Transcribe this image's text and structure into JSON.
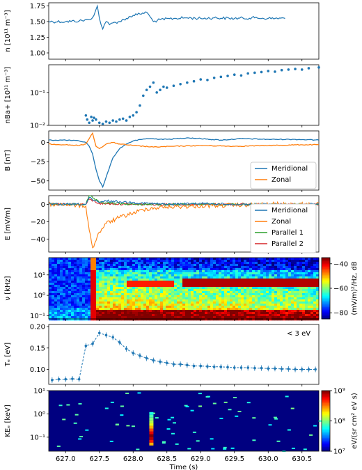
{
  "colors": {
    "blue": "#1f77b4",
    "orange": "#ff7f0e",
    "green": "#2ca02c",
    "red": "#d62728"
  },
  "chart_data": [
    {
      "type": "line",
      "ylabel": "n [10¹¹ m⁻³]",
      "ylim": [
        0.9,
        1.8
      ],
      "yticks": [
        1.0,
        1.25,
        1.5,
        1.75
      ],
      "ytick_labels": [
        "1.00",
        "1.25",
        "1.50",
        "1.75"
      ],
      "series": [
        {
          "name": "",
          "color": "#1f77b4",
          "x": [
            626.75,
            627.0,
            627.2,
            627.35,
            627.42,
            627.47,
            627.5,
            627.55,
            627.6,
            627.65,
            627.7,
            627.8,
            627.9,
            628.0,
            628.1,
            628.2,
            628.25,
            628.3,
            628.4,
            628.6,
            628.8,
            629.0,
            629.2,
            629.5,
            629.8,
            630.0,
            630.25
          ],
          "y": [
            1.5,
            1.5,
            1.51,
            1.53,
            1.6,
            1.75,
            1.55,
            1.38,
            1.5,
            1.45,
            1.48,
            1.5,
            1.55,
            1.6,
            1.62,
            1.65,
            1.58,
            1.5,
            1.53,
            1.55,
            1.56,
            1.55,
            1.56,
            1.55,
            1.56,
            1.55,
            1.55
          ]
        }
      ]
    },
    {
      "type": "scatter",
      "ylabel": "nBa+ [10¹¹ m⁻³]",
      "yscale": "log",
      "ylim": [
        0.01,
        0.7
      ],
      "yticks": [
        0.01,
        0.1
      ],
      "ytick_labels": [
        "10⁻²",
        "10⁻¹"
      ],
      "series": [
        {
          "name": "",
          "color": "#1f77b4",
          "x": [
            627.3,
            627.32,
            627.35,
            627.38,
            627.4,
            627.42,
            627.45,
            627.5,
            627.55,
            627.6,
            627.65,
            627.7,
            627.75,
            627.8,
            627.85,
            627.9,
            627.95,
            628.0,
            628.05,
            628.1,
            628.15,
            628.2,
            628.25,
            628.3,
            628.35,
            628.4,
            628.45,
            628.5,
            628.6,
            628.7,
            628.8,
            628.9,
            629.0,
            629.1,
            629.2,
            629.3,
            629.4,
            629.5,
            629.6,
            629.7,
            629.8,
            629.9,
            630.0,
            630.1,
            630.2,
            630.3,
            630.4,
            630.5,
            630.6,
            630.75
          ],
          "y": [
            0.02,
            0.015,
            0.012,
            0.018,
            0.014,
            0.017,
            0.015,
            0.012,
            0.011,
            0.013,
            0.012,
            0.014,
            0.013,
            0.015,
            0.016,
            0.014,
            0.018,
            0.02,
            0.025,
            0.04,
            0.08,
            0.12,
            0.15,
            0.2,
            0.1,
            0.12,
            0.15,
            0.14,
            0.16,
            0.18,
            0.2,
            0.22,
            0.25,
            0.24,
            0.28,
            0.3,
            0.32,
            0.35,
            0.33,
            0.38,
            0.4,
            0.42,
            0.45,
            0.43,
            0.48,
            0.5,
            0.52,
            0.5,
            0.55,
            0.58
          ]
        }
      ]
    },
    {
      "type": "line",
      "ylabel": "B [nT]",
      "ylim": [
        -62,
        15
      ],
      "yticks": [
        -50,
        -25,
        0
      ],
      "ytick_labels": [
        "−50",
        "−25",
        "0"
      ],
      "legend": "bottom-right",
      "series": [
        {
          "name": "Meridional",
          "color": "#1f77b4",
          "x": [
            626.75,
            627.0,
            627.2,
            627.3,
            627.35,
            627.4,
            627.45,
            627.5,
            627.55,
            627.6,
            627.7,
            627.8,
            627.9,
            628.0,
            628.2,
            628.5,
            628.8,
            629.0,
            629.3,
            629.6,
            630.0,
            630.4,
            630.75
          ],
          "y": [
            3,
            3,
            2,
            0,
            -5,
            -15,
            -35,
            -50,
            -58,
            -45,
            -20,
            -8,
            -2,
            2,
            5,
            4,
            6,
            5,
            3,
            5,
            4,
            4,
            3
          ]
        },
        {
          "name": "Zonal",
          "color": "#ff7f0e",
          "x": [
            626.75,
            627.0,
            627.2,
            627.3,
            627.35,
            627.4,
            627.45,
            627.5,
            627.6,
            627.7,
            627.8,
            628.0,
            628.3,
            628.6,
            629.0,
            629.5,
            630.0,
            630.5,
            630.75
          ],
          "y": [
            -2,
            -3,
            -4,
            -2,
            5,
            12,
            -5,
            -8,
            -2,
            0,
            -2,
            -4,
            -6,
            -5,
            -4,
            -5,
            -4,
            -3,
            -3
          ]
        }
      ]
    },
    {
      "type": "line",
      "ylabel": "E [mV/m]",
      "ylim": [
        -55,
        10
      ],
      "yticks": [
        -40,
        -20,
        0
      ],
      "ytick_labels": [
        "−40",
        "−20",
        "0"
      ],
      "legend": "right",
      "series": [
        {
          "name": "Meridional",
          "color": "#1f77b4",
          "x": [
            626.75,
            627.0,
            627.3,
            627.35,
            627.4,
            627.5,
            627.6,
            627.8,
            628.0,
            628.5,
            629.0,
            629.5,
            630.0,
            630.75
          ],
          "y": [
            0,
            0,
            0,
            8,
            5,
            2,
            4,
            3,
            2,
            0,
            1,
            0,
            0,
            0
          ]
        },
        {
          "name": "Zonal",
          "color": "#ff7f0e",
          "x": [
            626.75,
            627.0,
            627.3,
            627.35,
            627.4,
            627.5,
            627.6,
            627.8,
            628.0,
            628.2,
            628.5,
            629.0,
            629.5,
            630.0,
            630.75
          ],
          "y": [
            0,
            0,
            -2,
            -30,
            -50,
            -32,
            -22,
            -15,
            -10,
            -5,
            -3,
            -2,
            -1,
            0,
            0
          ]
        },
        {
          "name": "Parallel 1",
          "color": "#2ca02c",
          "x": [
            626.75,
            627.0,
            627.3,
            627.35,
            627.5,
            628.0,
            629.0,
            630.0,
            630.75
          ],
          "y": [
            0,
            0,
            0,
            10,
            2,
            0,
            0,
            0,
            0
          ]
        },
        {
          "name": "Parallel 2",
          "color": "#d62728",
          "x": [
            626.75,
            627.0,
            627.3,
            627.35,
            627.5,
            628.0,
            629.0,
            630.0,
            630.75
          ],
          "y": [
            0,
            0,
            0,
            6,
            1,
            0,
            0,
            0,
            0
          ]
        }
      ]
    },
    {
      "type": "heatmap",
      "ylabel": "ν [kHz]",
      "yscale": "log",
      "ylim": [
        0.07,
        70
      ],
      "yticks": [
        0.1,
        1,
        10
      ],
      "ytick_labels": [
        "10⁻¹",
        "10⁰",
        "10¹"
      ],
      "colorbar": {
        "label": "(mV/m)²/Hz, dB",
        "min": -85,
        "max": -35,
        "ticks": [
          -80,
          -60,
          -40
        ],
        "tick_labels": [
          "−80",
          "−60",
          "−40"
        ]
      }
    },
    {
      "type": "line",
      "ylabel": "Tₑ [eV]",
      "ylim": [
        0.065,
        0.205
      ],
      "yticks": [
        0.1,
        0.15,
        0.2
      ],
      "ytick_labels": [
        "0.10",
        "0.15",
        "0.20"
      ],
      "annotation": "< 3 eV",
      "series": [
        {
          "name": "",
          "color": "#1f77b4",
          "x": [
            626.8,
            626.9,
            627.0,
            627.1,
            627.2,
            627.3,
            627.4,
            627.5,
            627.6,
            627.7,
            627.8,
            627.9,
            628.0,
            628.1,
            628.2,
            628.3,
            628.4,
            628.5,
            628.6,
            628.7,
            628.8,
            628.9,
            629.0,
            629.1,
            629.2,
            629.3,
            629.4,
            629.5,
            629.6,
            629.7,
            629.8,
            629.9,
            630.0,
            630.1,
            630.2,
            630.3,
            630.4,
            630.5,
            630.6,
            630.7
          ],
          "y": [
            0.075,
            0.077,
            0.077,
            0.078,
            0.077,
            0.155,
            0.16,
            0.185,
            0.18,
            0.175,
            0.163,
            0.148,
            0.138,
            0.132,
            0.126,
            0.121,
            0.118,
            0.115,
            0.112,
            0.112,
            0.11,
            0.108,
            0.108,
            0.107,
            0.106,
            0.106,
            0.105,
            0.104,
            0.104,
            0.104,
            0.103,
            0.103,
            0.102,
            0.102,
            0.101,
            0.101,
            0.1,
            0.1,
            0.1,
            0.1
          ]
        }
      ]
    },
    {
      "type": "heatmap",
      "ylabel": "KEₑ [keV]",
      "yscale": "log",
      "ylim": [
        0.025,
        10
      ],
      "yticks": [
        0.1,
        1,
        10
      ],
      "ytick_labels": [
        "10⁻¹",
        "10⁰",
        "10¹"
      ],
      "xlabel": "Time (s)",
      "xlim": [
        626.75,
        630.75
      ],
      "xticks": [
        627.0,
        627.5,
        628.0,
        628.5,
        629.0,
        629.5,
        630.0,
        630.5
      ],
      "xtick_labels": [
        "627.0",
        "627.5",
        "628.0",
        "628.5",
        "629.0",
        "629.5",
        "630.0",
        "630.5"
      ],
      "colorbar": {
        "label": "eV/(sr cm² eV s)",
        "min": 10000000.0,
        "max": 1000000000.0,
        "scale": "log",
        "ticks": [
          10000000.0,
          100000000.0,
          1000000000.0
        ],
        "tick_labels": [
          "10⁷",
          "10⁸",
          "10⁹"
        ]
      }
    }
  ]
}
